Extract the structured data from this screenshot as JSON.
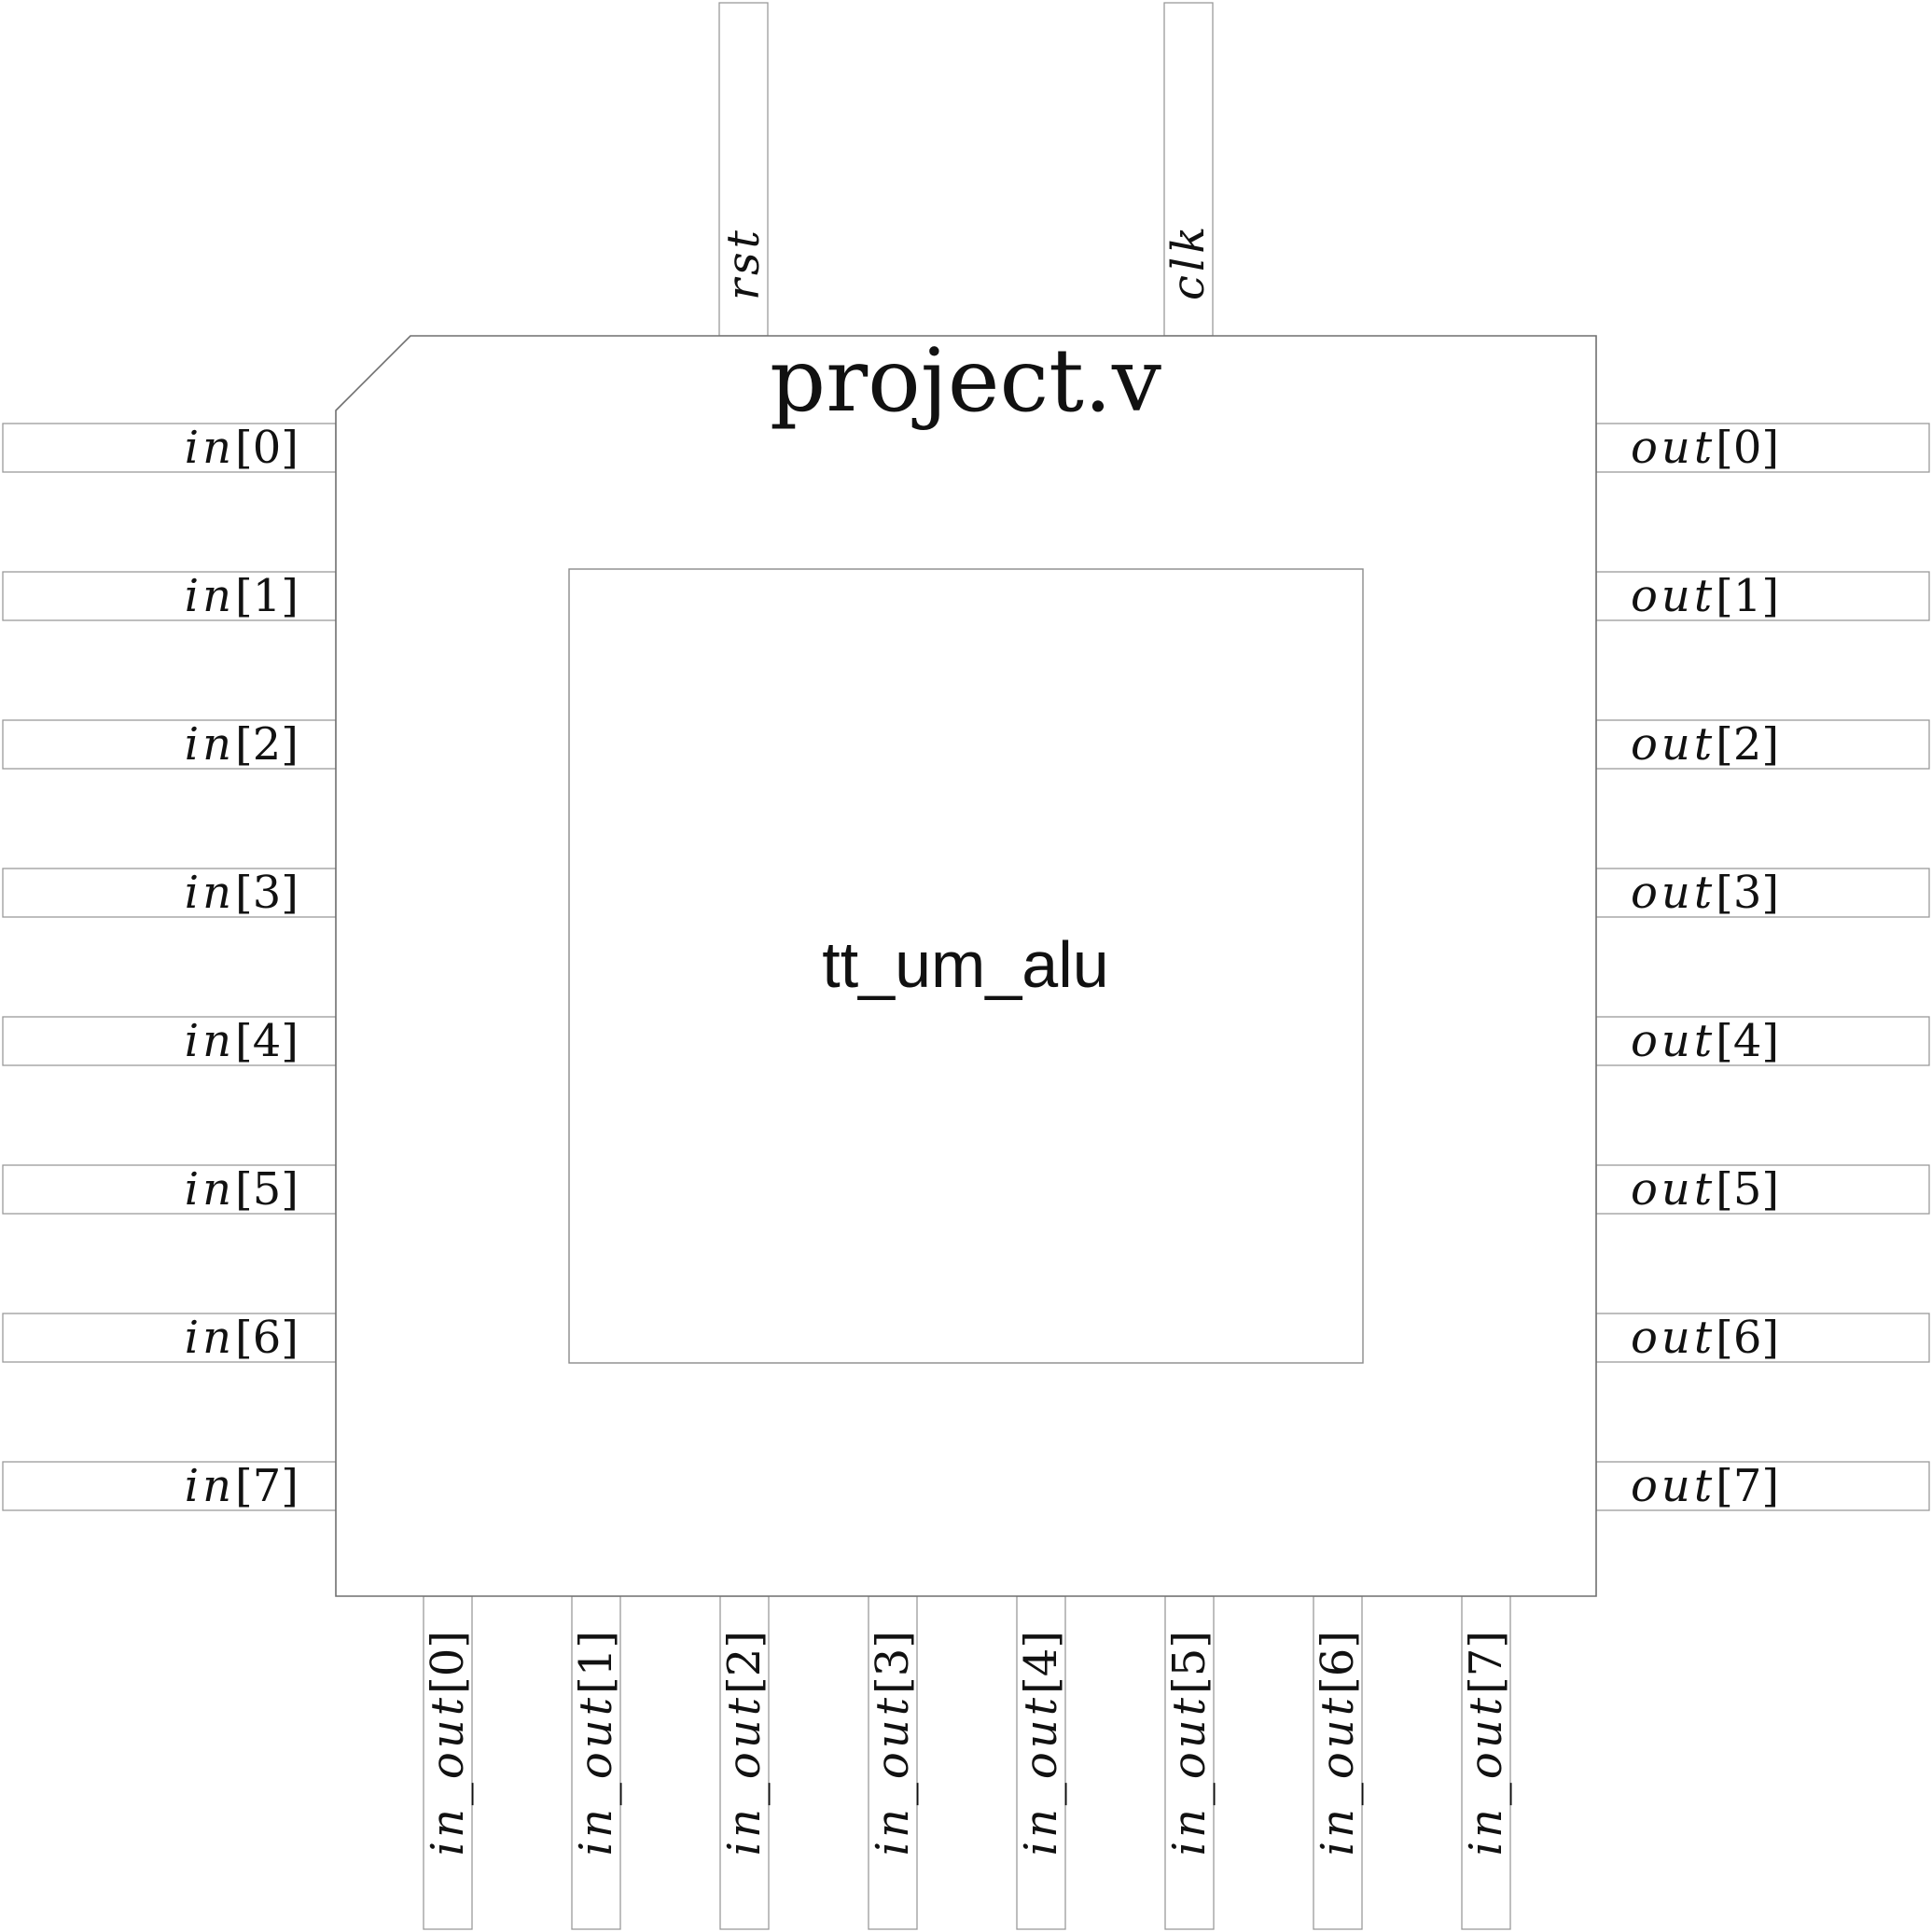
{
  "chip": {
    "title": "project.v",
    "core_label": "tt_um_alu"
  },
  "top_pins": [
    {
      "name": "rst",
      "index": ""
    },
    {
      "name": "clk",
      "index": ""
    }
  ],
  "left_pins": [
    {
      "name": "in",
      "index": "[0]"
    },
    {
      "name": "in",
      "index": "[1]"
    },
    {
      "name": "in",
      "index": "[2]"
    },
    {
      "name": "in",
      "index": "[3]"
    },
    {
      "name": "in",
      "index": "[4]"
    },
    {
      "name": "in",
      "index": "[5]"
    },
    {
      "name": "in",
      "index": "[6]"
    },
    {
      "name": "in",
      "index": "[7]"
    }
  ],
  "right_pins": [
    {
      "name": "out",
      "index": "[0]"
    },
    {
      "name": "out",
      "index": "[1]"
    },
    {
      "name": "out",
      "index": "[2]"
    },
    {
      "name": "out",
      "index": "[3]"
    },
    {
      "name": "out",
      "index": "[4]"
    },
    {
      "name": "out",
      "index": "[5]"
    },
    {
      "name": "out",
      "index": "[6]"
    },
    {
      "name": "out",
      "index": "[7]"
    }
  ],
  "bottom_pins": [
    {
      "name": "in_out",
      "index": "[0]"
    },
    {
      "name": "in_out",
      "index": "[1]"
    },
    {
      "name": "in_out",
      "index": "[2]"
    },
    {
      "name": "in_out",
      "index": "[3]"
    },
    {
      "name": "in_out",
      "index": "[4]"
    },
    {
      "name": "in_out",
      "index": "[5]"
    },
    {
      "name": "in_out",
      "index": "[6]"
    },
    {
      "name": "in_out",
      "index": "[7]"
    }
  ]
}
